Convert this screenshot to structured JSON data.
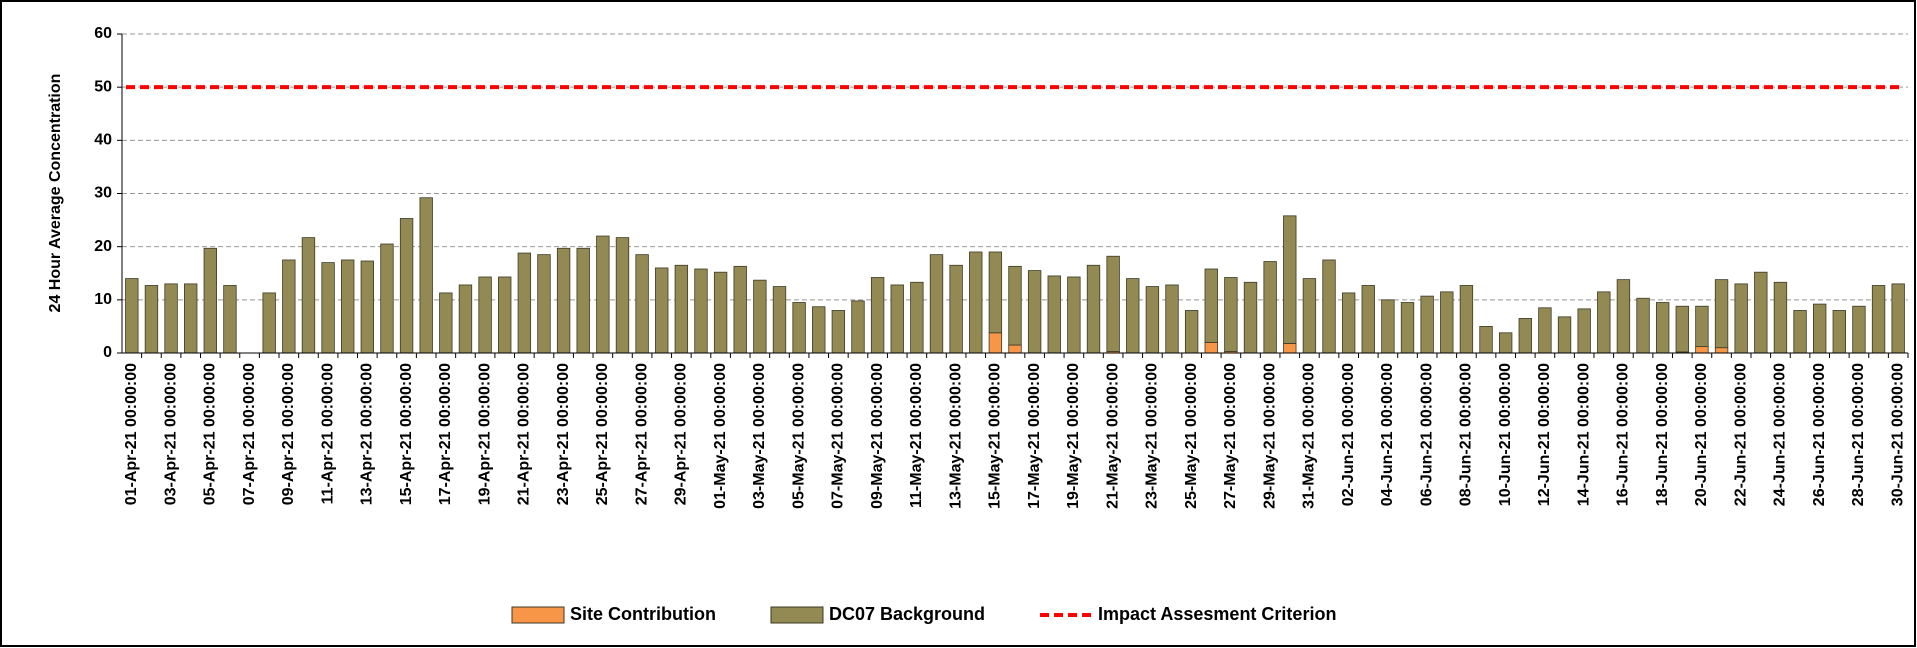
{
  "chart_data": {
    "type": "bar",
    "stacked": true,
    "y_label": "24 Hour Average Concentration",
    "categories": [
      "01-Apr-21 00:00:00",
      null,
      "03-Apr-21 00:00:00",
      null,
      "05-Apr-21 00:00:00",
      null,
      "07-Apr-21 00:00:00",
      null,
      "09-Apr-21 00:00:00",
      null,
      "11-Apr-21 00:00:00",
      null,
      "13-Apr-21 00:00:00",
      null,
      "15-Apr-21 00:00:00",
      null,
      "17-Apr-21 00:00:00",
      null,
      "19-Apr-21 00:00:00",
      null,
      "21-Apr-21 00:00:00",
      null,
      "23-Apr-21 00:00:00",
      null,
      "25-Apr-21 00:00:00",
      null,
      "27-Apr-21 00:00:00",
      null,
      "29-Apr-21 00:00:00",
      null,
      "01-May-21 00:00:00",
      null,
      "03-May-21 00:00:00",
      null,
      "05-May-21 00:00:00",
      null,
      "07-May-21 00:00:00",
      null,
      "09-May-21 00:00:00",
      null,
      "11-May-21 00:00:00",
      null,
      "13-May-21 00:00:00",
      null,
      "15-May-21 00:00:00",
      null,
      "17-May-21 00:00:00",
      null,
      "19-May-21 00:00:00",
      null,
      "21-May-21 00:00:00",
      null,
      "23-May-21 00:00:00",
      null,
      "25-May-21 00:00:00",
      null,
      "27-May-21 00:00:00",
      null,
      "29-May-21 00:00:00",
      null,
      "31-May-21 00:00:00",
      null,
      "02-Jun-21 00:00:00",
      null,
      "04-Jun-21 00:00:00",
      null,
      "06-Jun-21 00:00:00",
      null,
      "08-Jun-21 00:00:00",
      null,
      "10-Jun-21 00:00:00",
      null,
      "12-Jun-21 00:00:00",
      null,
      "14-Jun-21 00:00:00",
      null,
      "16-Jun-21 00:00:00",
      null,
      "18-Jun-21 00:00:00",
      null,
      "20-Jun-21 00:00:00",
      null,
      "22-Jun-21 00:00:00",
      null,
      "24-Jun-21 00:00:00",
      null,
      "26-Jun-21 00:00:00",
      null,
      "28-Jun-21 00:00:00",
      null,
      "30-Jun-21 00:00:00"
    ],
    "series": [
      {
        "name": "Site Contribution",
        "color": "#f79646",
        "values": [
          0,
          0,
          0,
          0,
          0,
          0,
          null,
          0,
          0,
          0,
          0,
          0,
          0,
          0,
          0,
          0,
          0,
          0,
          0,
          0,
          0,
          0,
          0,
          0,
          0,
          0,
          0,
          0,
          0,
          0,
          0,
          0,
          0,
          0,
          0,
          0,
          0,
          0,
          0,
          0,
          0,
          0,
          0,
          0,
          3.8,
          1.5,
          0,
          0,
          0,
          0,
          0.3,
          0,
          0,
          0,
          0,
          2,
          0.3,
          0,
          0,
          1.8,
          0,
          0,
          0,
          0,
          0,
          0,
          0,
          0,
          0,
          0,
          0,
          0,
          0,
          0,
          0,
          0,
          0,
          0,
          0,
          0.2,
          1.2,
          1,
          0,
          0,
          0,
          0,
          0,
          0,
          0,
          0,
          0
        ]
      },
      {
        "name": "DC07 Background",
        "color": "#938953",
        "values": [
          14,
          12.7,
          13,
          13,
          19.7,
          12.7,
          null,
          11.3,
          17.5,
          21.7,
          17,
          17.5,
          17.3,
          20.5,
          25.3,
          29.2,
          11.3,
          12.8,
          14.3,
          14.3,
          18.8,
          18.5,
          19.7,
          19.7,
          22,
          21.7,
          18.5,
          16,
          16.5,
          15.8,
          15.2,
          16.3,
          13.7,
          12.5,
          9.5,
          8.7,
          8,
          9.8,
          14.2,
          12.8,
          13.3,
          18.5,
          16.5,
          19,
          15.2,
          14.8,
          15.5,
          14.5,
          14.3,
          16.5,
          17.9,
          14,
          12.5,
          12.8,
          8,
          13.8,
          13.9,
          13.3,
          17.2,
          24,
          14,
          17.5,
          11.3,
          12.7,
          10,
          9.5,
          10.7,
          11.5,
          12.7,
          5,
          3.8,
          6.5,
          8.5,
          6.8,
          8.3,
          11.5,
          13.8,
          10.3,
          9.5,
          8.6,
          7.6,
          12.8,
          13,
          15.2,
          13.3,
          8,
          9.2,
          8,
          8.8,
          12.7,
          13
        ]
      }
    ],
    "criterion": {
      "name": "Impact Assesment Criterion",
      "value": 50,
      "color": "#ff0000"
    },
    "ylim": [
      0,
      60
    ],
    "yticks": [
      0,
      10,
      20,
      30,
      40,
      50,
      60
    ],
    "grid": true,
    "legend": "bottom"
  }
}
